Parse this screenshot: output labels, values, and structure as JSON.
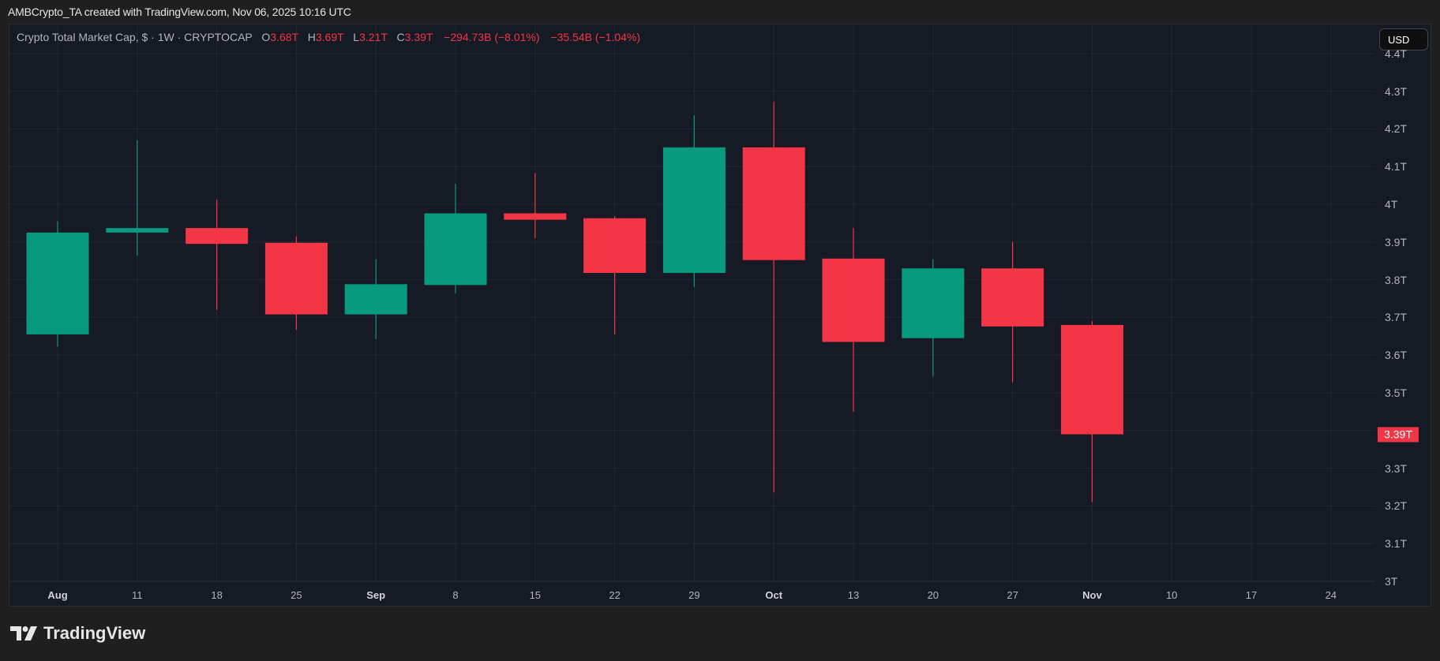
{
  "attribution": "AMBCrypto_TA created with TradingView.com, Nov 06, 2025 10:16 UTC",
  "legend": {
    "symbol": "Crypto Total Market Cap, $ · 1W · CRYPTOCAP",
    "open_label": "O",
    "open": "3.68T",
    "high_label": "H",
    "high": "3.69T",
    "low_label": "L",
    "low": "3.21T",
    "close_label": "C",
    "close": "3.39T",
    "change": "−294.73B (−8.01%)",
    "change2": "−35.54B (−1.04%)"
  },
  "currency_button": "USD",
  "last_price_tag": "3.39T",
  "branding": "TradingView",
  "colors": {
    "up": "#089981",
    "down": "#f23645",
    "background": "#161a25",
    "grid": "#232733"
  },
  "chart_data": {
    "type": "candlestick",
    "title": "Crypto Total Market Cap, $ · 1W · CRYPTOCAP",
    "xlabel": "",
    "ylabel": "",
    "ylim": [
      3.0,
      4.4
    ],
    "grid": true,
    "y_ticks": [
      "4.4T",
      "4.3T",
      "4.2T",
      "4.1T",
      "4T",
      "3.9T",
      "3.8T",
      "3.7T",
      "3.6T",
      "3.5T",
      "3.4T",
      "3.3T",
      "3.2T",
      "3.1T",
      "3T"
    ],
    "x_ticks": [
      "Aug",
      "11",
      "18",
      "25",
      "Sep",
      "8",
      "15",
      "22",
      "29",
      "Oct",
      "13",
      "20",
      "27",
      "Nov",
      "10",
      "17",
      "24"
    ],
    "x_ticks_major": [
      "Aug",
      "Sep",
      "Oct",
      "Nov"
    ],
    "categories": [
      "Aug",
      "11",
      "18",
      "25",
      "Sep",
      "8",
      "15",
      "22",
      "29",
      "Oct",
      "13",
      "20",
      "27",
      "Nov"
    ],
    "candles": [
      {
        "x": "Aug",
        "open": 3.655,
        "high": 3.955,
        "low": 3.623,
        "close": 3.925
      },
      {
        "x": "11",
        "open": 3.925,
        "high": 4.17,
        "low": 3.864,
        "close": 3.937
      },
      {
        "x": "18",
        "open": 3.937,
        "high": 4.012,
        "low": 3.72,
        "close": 3.895
      },
      {
        "x": "25",
        "open": 3.898,
        "high": 3.915,
        "low": 3.667,
        "close": 3.708
      },
      {
        "x": "Sep",
        "open": 3.708,
        "high": 3.854,
        "low": 3.642,
        "close": 3.788
      },
      {
        "x": "8",
        "open": 3.786,
        "high": 4.054,
        "low": 3.764,
        "close": 3.976
      },
      {
        "x": "15",
        "open": 3.976,
        "high": 4.083,
        "low": 3.91,
        "close": 3.959
      },
      {
        "x": "22",
        "open": 3.963,
        "high": 3.968,
        "low": 3.655,
        "close": 3.818
      },
      {
        "x": "29",
        "open": 3.818,
        "high": 4.236,
        "low": 3.781,
        "close": 4.151
      },
      {
        "x": "Oct",
        "open": 4.151,
        "high": 4.272,
        "low": 3.236,
        "close": 3.852
      },
      {
        "x": "13",
        "open": 3.856,
        "high": 3.937,
        "low": 3.45,
        "close": 3.635
      },
      {
        "x": "20",
        "open": 3.645,
        "high": 3.854,
        "low": 3.543,
        "close": 3.83
      },
      {
        "x": "27",
        "open": 3.83,
        "high": 3.9,
        "low": 3.528,
        "close": 3.676
      },
      {
        "x": "Nov",
        "open": 3.68,
        "high": 3.69,
        "low": 3.21,
        "close": 3.39
      }
    ],
    "last_price": 3.39
  }
}
